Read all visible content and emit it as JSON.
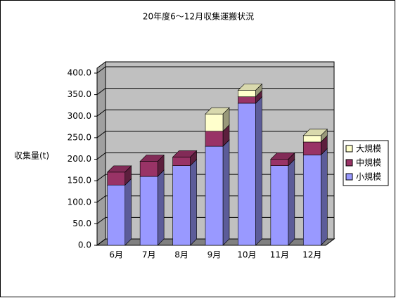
{
  "chart_data": {
    "type": "bar3d-stacked",
    "title": "20年度6～12月収集運搬状況",
    "ylabel": "収集量(t)",
    "categories": [
      "6月",
      "7月",
      "8月",
      "9月",
      "10月",
      "11月",
      "12月"
    ],
    "series": [
      {
        "name": "小規模",
        "color": "#9999ff",
        "values": [
          140,
          160,
          185,
          230,
          330,
          185,
          210
        ]
      },
      {
        "name": "中規模",
        "color": "#993366",
        "values": [
          30,
          35,
          20,
          35,
          15,
          15,
          30
        ]
      },
      {
        "name": "大規模",
        "color": "#ffffcc",
        "values": [
          0,
          0,
          0,
          40,
          15,
          0,
          15
        ]
      }
    ],
    "ylim": [
      0,
      400
    ],
    "yticks": [
      {
        "value": 0,
        "label": "0.0"
      },
      {
        "value": 50,
        "label": "50.0"
      },
      {
        "value": 100,
        "label": "100.0"
      },
      {
        "value": 150,
        "label": "150.0"
      },
      {
        "value": 200,
        "label": "200.0"
      },
      {
        "value": 250,
        "label": "250.0"
      },
      {
        "value": 300,
        "label": "300.0"
      },
      {
        "value": 350,
        "label": "350.0"
      },
      {
        "value": 400,
        "label": "400.0"
      }
    ],
    "grid": true,
    "legend": "right"
  }
}
